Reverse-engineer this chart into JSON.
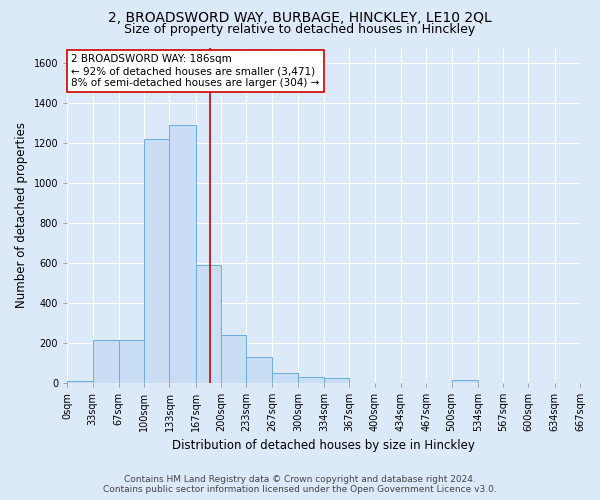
{
  "title": "2, BROADSWORD WAY, BURBAGE, HINCKLEY, LE10 2QL",
  "subtitle": "Size of property relative to detached houses in Hinckley",
  "xlabel": "Distribution of detached houses by size in Hinckley",
  "ylabel": "Number of detached properties",
  "bin_edges": [
    0,
    33,
    67,
    100,
    133,
    167,
    200,
    233,
    267,
    300,
    334,
    367,
    400,
    434,
    467,
    500,
    534,
    567,
    600,
    634,
    667
  ],
  "bar_heights": [
    10,
    215,
    215,
    1220,
    1290,
    590,
    240,
    130,
    50,
    30,
    25,
    0,
    0,
    0,
    0,
    15,
    0,
    0,
    0,
    0
  ],
  "bar_color": "#c9ddf5",
  "bar_edge_color": "#6baed6",
  "property_size": 186,
  "red_line_color": "#cc0000",
  "annotation_text": "2 BROADSWORD WAY: 186sqm\n← 92% of detached houses are smaller (3,471)\n8% of semi-detached houses are larger (304) →",
  "annotation_box_color": "#ffffff",
  "annotation_box_edge": "#cc0000",
  "ylim": [
    0,
    1680
  ],
  "yticks": [
    0,
    200,
    400,
    600,
    800,
    1000,
    1200,
    1400,
    1600
  ],
  "footer_line1": "Contains HM Land Registry data © Crown copyright and database right 2024.",
  "footer_line2": "Contains public sector information licensed under the Open Government Licence v3.0.",
  "background_color": "#dce9f8",
  "grid_color": "#ffffff",
  "title_fontsize": 10,
  "subtitle_fontsize": 9,
  "axis_label_fontsize": 8.5,
  "tick_fontsize": 7,
  "annotation_fontsize": 7.5,
  "footer_fontsize": 6.5
}
